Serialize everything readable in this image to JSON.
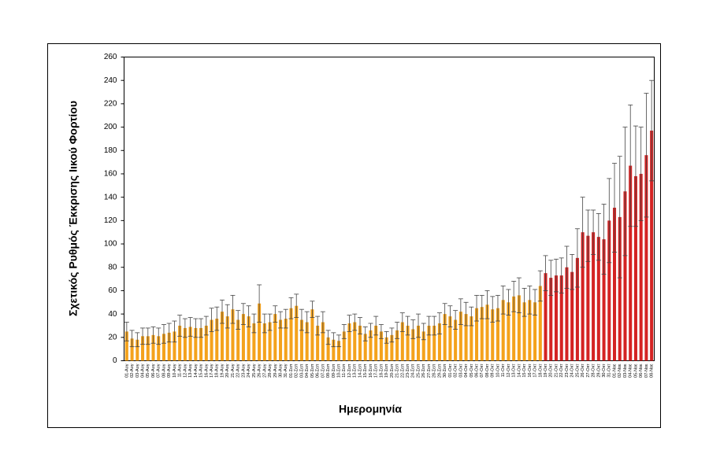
{
  "chart_data": {
    "type": "bar",
    "y_label": "Σχετικός Ρυθμός Έκκρισης Ιικού Φορτίου",
    "x_label": "Ημερομηνία",
    "categories": [
      "01-Αυγ",
      "02-Αυγ",
      "03-Αυγ",
      "04-Αυγ",
      "05-Αυγ",
      "06-Αυγ",
      "07-Αυγ",
      "08-Αυγ",
      "09-Αυγ",
      "10-Αυγ",
      "11-Αυγ",
      "12-Αυγ",
      "13-Αυγ",
      "14-Αυγ",
      "15-Αυγ",
      "16-Αυγ",
      "17-Αυγ",
      "18-Αυγ",
      "19-Αυγ",
      "20-Αυγ",
      "21-Αυγ",
      "22-Αυγ",
      "23-Αυγ",
      "24-Αυγ",
      "25-Αυγ",
      "26-Αυγ",
      "27-Αυγ",
      "28-Αυγ",
      "29-Αυγ",
      "30-Αυγ",
      "31-Αυγ",
      "01-Σεπ",
      "02-Σεπ",
      "03-Σεπ",
      "04-Σεπ",
      "05-Σεπ",
      "06-Σεπ",
      "07-Σεπ",
      "08-Σεπ",
      "09-Σεπ",
      "10-Σεπ",
      "11-Σεπ",
      "12-Σεπ",
      "13-Σεπ",
      "14-Σεπ",
      "15-Σεπ",
      "16-Σεπ",
      "17-Σεπ",
      "18-Σεπ",
      "19-Σεπ",
      "20-Σεπ",
      "21-Σεπ",
      "22-Σεπ",
      "23-Σεπ",
      "24-Σεπ",
      "25-Σεπ",
      "26-Σεπ",
      "27-Σεπ",
      "28-Σεπ",
      "29-Σεπ",
      "30-Σεπ",
      "01-Οκτ",
      "02-Οκτ",
      "03-Οκτ",
      "04-Οκτ",
      "05-Οκτ",
      "06-Οκτ",
      "07-Οκτ",
      "08-Οκτ",
      "09-Οκτ",
      "10-Οκτ",
      "11-Οκτ",
      "12-Οκτ",
      "13-Οκτ",
      "14-Οκτ",
      "15-Οκτ",
      "16-Οκτ",
      "17-Οκτ",
      "18-Οκτ",
      "19-Οκτ",
      "20-Οκτ",
      "21-Οκτ",
      "22-Οκτ",
      "23-Οκτ",
      "24-Οκτ",
      "25-Οκτ",
      "26-Οκτ",
      "27-Οκτ",
      "28-Οκτ",
      "29-Οκτ",
      "30-Οκτ",
      "31-Οκτ",
      "01-Νοε",
      "02-Νοε",
      "03-Νοε",
      "04-Νοε",
      "05-Νοε",
      "06-Νοε",
      "07-Νοε",
      "08-Νοε"
    ],
    "values": [
      25,
      19,
      18,
      21,
      21,
      22,
      21,
      23,
      24,
      25,
      30,
      28,
      29,
      28,
      28,
      30,
      35,
      36,
      42,
      38,
      44,
      35,
      40,
      38,
      32,
      49,
      32,
      33,
      40,
      35,
      36,
      45,
      47,
      35,
      33,
      44,
      30,
      33,
      20,
      18,
      17,
      25,
      32,
      33,
      30,
      23,
      26,
      30,
      25,
      20,
      22,
      26,
      33,
      30,
      27,
      30,
      25,
      30,
      30,
      32,
      40,
      38,
      35,
      42,
      40,
      38,
      45,
      46,
      48,
      44,
      45,
      52,
      50,
      55,
      56,
      50,
      52,
      50,
      64,
      75,
      71,
      73,
      73,
      80,
      76,
      88,
      110,
      107,
      110,
      106,
      104,
      120,
      131,
      123,
      145,
      167,
      158,
      160,
      176,
      197
    ],
    "errors": [
      8,
      7,
      6,
      7,
      7,
      7,
      7,
      8,
      8,
      9,
      9,
      8,
      8,
      8,
      8,
      8,
      10,
      10,
      10,
      10,
      12,
      8,
      9,
      9,
      8,
      16,
      8,
      7,
      7,
      7,
      8,
      9,
      10,
      9,
      9,
      7,
      8,
      9,
      6,
      6,
      5,
      6,
      7,
      7,
      7,
      6,
      6,
      8,
      6,
      5,
      6,
      7,
      8,
      8,
      8,
      10,
      7,
      8,
      8,
      9,
      9,
      9,
      8,
      11,
      10,
      8,
      11,
      10,
      12,
      11,
      11,
      12,
      11,
      13,
      15,
      12,
      12,
      11,
      13,
      15,
      15,
      14,
      15,
      18,
      15,
      25,
      30,
      22,
      19,
      20,
      30,
      36,
      38,
      52,
      55,
      52,
      43,
      40,
      53,
      43
    ],
    "colors": [
      "#f4a21c",
      "#f4a21c",
      "#f4a21c",
      "#f4a21c",
      "#f4a21c",
      "#f4a21c",
      "#f4a21c",
      "#f4a21c",
      "#f4a21c",
      "#f4a21c",
      "#f4a21c",
      "#f4a21c",
      "#f4a21c",
      "#f4a21c",
      "#f4a21c",
      "#f4a21c",
      "#f4a21c",
      "#f4a21c",
      "#f4a21c",
      "#f4a21c",
      "#f4a21c",
      "#f4a21c",
      "#f4a21c",
      "#f4a21c",
      "#f4a21c",
      "#f4a21c",
      "#f4a21c",
      "#f4a21c",
      "#f4a21c",
      "#f4a21c",
      "#f4a21c",
      "#f4a21c",
      "#f4a21c",
      "#f4a21c",
      "#f4a21c",
      "#f4a21c",
      "#f4a21c",
      "#f4a21c",
      "#f4a21c",
      "#f4a21c",
      "#f4a21c",
      "#f4a21c",
      "#f4a21c",
      "#f4a21c",
      "#f4a21c",
      "#f4a21c",
      "#f4a21c",
      "#f4a21c",
      "#f4a21c",
      "#f4a21c",
      "#f4a21c",
      "#f4a21c",
      "#f4a21c",
      "#f4a21c",
      "#f4a21c",
      "#f4a21c",
      "#f4a21c",
      "#f4a21c",
      "#f4a21c",
      "#f4a21c",
      "#f4a21c",
      "#f4a21c",
      "#f4a21c",
      "#f4a21c",
      "#f4a21c",
      "#f4a21c",
      "#f4a21c",
      "#f4a21c",
      "#f4a21c",
      "#f4a21c",
      "#f4a21c",
      "#f4a21c",
      "#f4a21c",
      "#f4a21c",
      "#f4a21c",
      "#f4a21c",
      "#f4a21c",
      "#f4a21c",
      "#f4a21c",
      "#d42323",
      "#d42323",
      "#d42323",
      "#d42323",
      "#d42323",
      "#d42323",
      "#d42323",
      "#d42323",
      "#d42323",
      "#d42323",
      "#d42323",
      "#d42323",
      "#d42323",
      "#d42323",
      "#d42323",
      "#d42323",
      "#d42323",
      "#d42323",
      "#d42323",
      "#d42323",
      "#d42323"
    ],
    "ylim": [
      0,
      260
    ],
    "yticks": [
      0,
      20,
      40,
      60,
      80,
      100,
      120,
      140,
      160,
      180,
      200,
      220,
      240,
      260
    ],
    "grid": false
  }
}
